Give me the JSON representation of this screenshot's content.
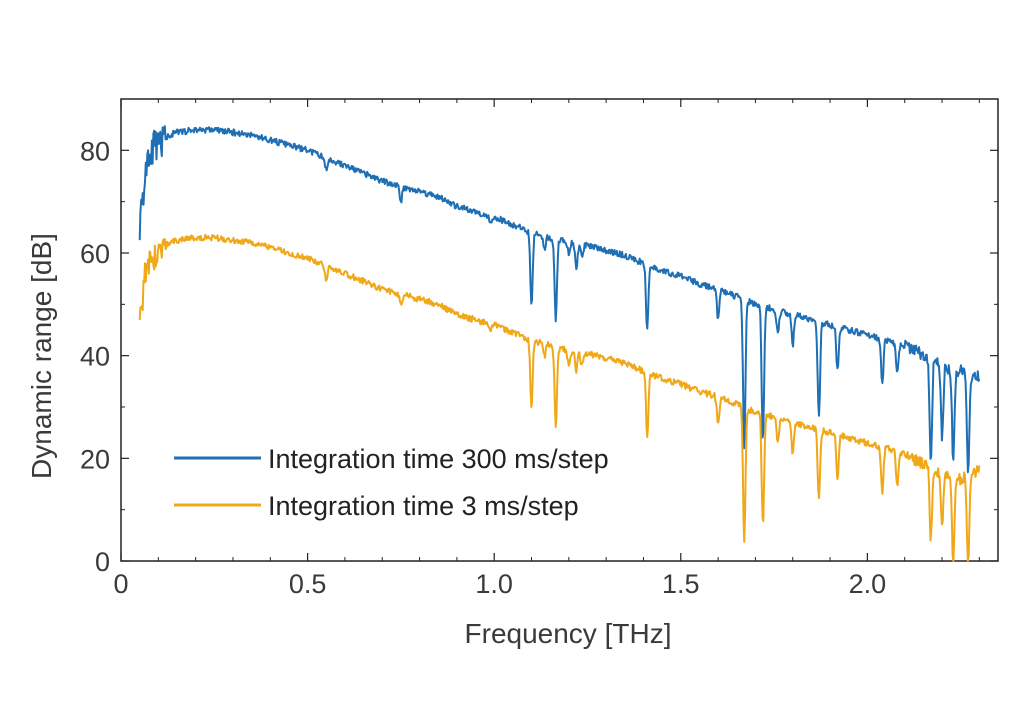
{
  "chart_data": {
    "type": "line",
    "title": "",
    "xlabel": "Frequency [THz]",
    "ylabel": "Dynamic range [dB]",
    "xlim": [
      0,
      2.35
    ],
    "ylim": [
      0,
      90
    ],
    "xticks": [
      0,
      0.5,
      1.0,
      1.5,
      2.0
    ],
    "xtick_labels": [
      "0",
      "0.5",
      "1.0",
      "1.5",
      "2.0"
    ],
    "yticks": [
      0,
      20,
      40,
      60,
      80
    ],
    "ytick_labels": [
      "0",
      "20",
      "40",
      "60",
      "80"
    ],
    "grid": false,
    "legend_position": "bottom-left",
    "series": [
      {
        "name": "Integration time 300 ms/step",
        "color": "#1f6fb4",
        "x": [
          0.05,
          0.07,
          0.1,
          0.15,
          0.2,
          0.25,
          0.3,
          0.35,
          0.4,
          0.45,
          0.5,
          0.55,
          0.6,
          0.65,
          0.7,
          0.75,
          0.8,
          0.85,
          0.9,
          0.95,
          1.0,
          1.05,
          1.1,
          1.15,
          1.2,
          1.25,
          1.3,
          1.35,
          1.4,
          1.45,
          1.5,
          1.55,
          1.6,
          1.65,
          1.7,
          1.75,
          1.8,
          1.85,
          1.9,
          1.95,
          2.0,
          2.05,
          2.1,
          2.15,
          2.2,
          2.25,
          2.3
        ],
        "y": [
          68,
          81,
          82,
          83.5,
          84,
          84,
          83.5,
          83,
          82,
          81,
          80,
          78.5,
          77,
          75.5,
          74,
          73,
          72,
          71,
          69,
          68,
          67,
          65.5,
          64,
          63,
          62,
          61.5,
          60.5,
          59.5,
          58,
          56.5,
          55.5,
          54,
          53,
          51.5,
          50,
          49,
          48,
          47,
          46,
          45,
          44,
          43,
          42,
          40,
          38,
          37,
          36
        ],
        "dips": [
          [
            0.55,
            76
          ],
          [
            0.75,
            70
          ],
          [
            0.99,
            66
          ],
          [
            1.1,
            50
          ],
          [
            1.135,
            61
          ],
          [
            1.165,
            47
          ],
          [
            1.2,
            60
          ],
          [
            1.22,
            57
          ],
          [
            1.235,
            59
          ],
          [
            1.41,
            45
          ],
          [
            1.6,
            47
          ],
          [
            1.67,
            22
          ],
          [
            1.72,
            23
          ],
          [
            1.76,
            44
          ],
          [
            1.8,
            42
          ],
          [
            1.87,
            28
          ],
          [
            1.92,
            37
          ],
          [
            2.04,
            35
          ],
          [
            2.08,
            37
          ],
          [
            2.17,
            19
          ],
          [
            2.2,
            24
          ],
          [
            2.23,
            20
          ],
          [
            2.27,
            17
          ]
        ]
      },
      {
        "name": "Integration time 3 ms/step",
        "color": "#f0a818",
        "x": [
          0.05,
          0.07,
          0.1,
          0.15,
          0.2,
          0.25,
          0.3,
          0.35,
          0.4,
          0.45,
          0.5,
          0.55,
          0.6,
          0.65,
          0.7,
          0.75,
          0.8,
          0.85,
          0.9,
          0.95,
          1.0,
          1.05,
          1.1,
          1.15,
          1.2,
          1.25,
          1.3,
          1.35,
          1.4,
          1.45,
          1.5,
          1.55,
          1.6,
          1.65,
          1.7,
          1.75,
          1.8,
          1.85,
          1.9,
          1.95,
          2.0,
          2.05,
          2.1,
          2.15,
          2.2,
          2.25,
          2.3
        ],
        "y": [
          51,
          60,
          61,
          62.5,
          63,
          63,
          62.5,
          62,
          61,
          60,
          59,
          57.5,
          56,
          54.5,
          53,
          52,
          51,
          50,
          48,
          47,
          46,
          44.5,
          43,
          42,
          41,
          40.5,
          39.5,
          38.5,
          37,
          35.5,
          34.5,
          33,
          32,
          30.5,
          29,
          28,
          27,
          26,
          25,
          24,
          23,
          22,
          21,
          19,
          17,
          16,
          17.5
        ],
        "dips": [
          [
            0.55,
            54
          ],
          [
            0.75,
            50
          ],
          [
            0.99,
            45
          ],
          [
            1.1,
            30
          ],
          [
            1.135,
            40
          ],
          [
            1.165,
            26
          ],
          [
            1.2,
            38
          ],
          [
            1.22,
            37
          ],
          [
            1.235,
            38
          ],
          [
            1.41,
            24
          ],
          [
            1.6,
            27
          ],
          [
            1.67,
            4
          ],
          [
            1.72,
            7
          ],
          [
            1.76,
            23
          ],
          [
            1.8,
            21
          ],
          [
            1.87,
            12
          ],
          [
            1.92,
            16
          ],
          [
            2.04,
            13
          ],
          [
            2.08,
            15
          ],
          [
            2.17,
            4
          ],
          [
            2.2,
            7
          ],
          [
            2.23,
            0
          ],
          [
            2.27,
            0
          ]
        ]
      }
    ]
  }
}
